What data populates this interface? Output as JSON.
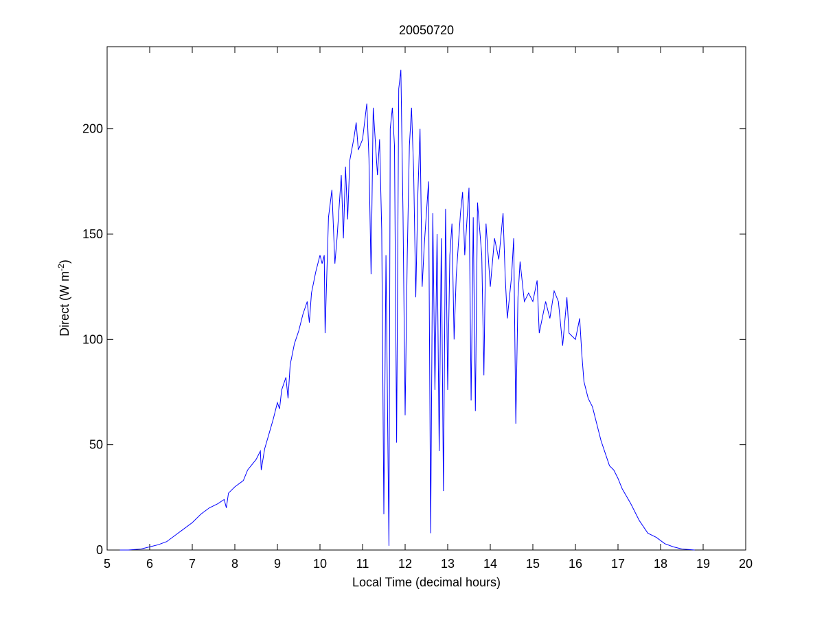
{
  "chart_data": {
    "type": "line",
    "title": "20050720",
    "x_label": "Local Time (decimal hours)",
    "y_label": {
      "text": "Direct (W m",
      "superscript": "-2",
      "suffix": ")"
    },
    "x": [
      5.3,
      5.5,
      5.8,
      6.0,
      6.2,
      6.4,
      6.6,
      6.8,
      7.0,
      7.2,
      7.4,
      7.6,
      7.75,
      7.8,
      7.85,
      8.0,
      8.2,
      8.3,
      8.5,
      8.6,
      8.62,
      8.7,
      8.8,
      8.9,
      9.0,
      9.05,
      9.1,
      9.2,
      9.25,
      9.3,
      9.4,
      9.5,
      9.6,
      9.7,
      9.75,
      9.8,
      9.9,
      10.0,
      10.05,
      10.1,
      10.12,
      10.2,
      10.28,
      10.35,
      10.4,
      10.5,
      10.55,
      10.6,
      10.65,
      10.7,
      10.8,
      10.85,
      10.9,
      11.0,
      11.1,
      11.15,
      11.2,
      11.25,
      11.35,
      11.4,
      11.45,
      11.5,
      11.55,
      11.6,
      11.62,
      11.65,
      11.7,
      11.75,
      11.8,
      11.85,
      11.9,
      11.95,
      12.0,
      12.05,
      12.1,
      12.15,
      12.2,
      12.25,
      12.3,
      12.35,
      12.4,
      12.45,
      12.55,
      12.6,
      12.65,
      12.7,
      12.75,
      12.8,
      12.85,
      12.9,
      12.95,
      13.0,
      13.05,
      13.1,
      13.15,
      13.2,
      13.3,
      13.35,
      13.4,
      13.5,
      13.55,
      13.6,
      13.65,
      13.7,
      13.8,
      13.85,
      13.9,
      14.0,
      14.1,
      14.2,
      14.3,
      14.35,
      14.4,
      14.5,
      14.55,
      14.6,
      14.65,
      14.7,
      14.8,
      14.9,
      15.0,
      15.1,
      15.15,
      15.3,
      15.4,
      15.5,
      15.6,
      15.7,
      15.8,
      15.85,
      16.0,
      16.1,
      16.15,
      16.2,
      16.3,
      16.4,
      16.5,
      16.6,
      16.7,
      16.8,
      16.9,
      17.0,
      17.1,
      17.3,
      17.5,
      17.7,
      17.9,
      18.1,
      18.3,
      18.5,
      18.8
    ],
    "series": [
      {
        "color": "#0000ff",
        "values": [
          0,
          0,
          0.5,
          1.5,
          2.5,
          4,
          7,
          10,
          13,
          17,
          20,
          22,
          24,
          20,
          27,
          30,
          33,
          38,
          43,
          47,
          38,
          48,
          55,
          62,
          70,
          67,
          76,
          82,
          72,
          88,
          98,
          104,
          112,
          118,
          108,
          122,
          132,
          140,
          136,
          140,
          103,
          158,
          171,
          136,
          148,
          178,
          148,
          182,
          157,
          185,
          196,
          203,
          190,
          195,
          212,
          186,
          131,
          210,
          178,
          195,
          152,
          17,
          140,
          40,
          2,
          200,
          210,
          192,
          51,
          219,
          228,
          160,
          64,
          140,
          192,
          210,
          180,
          120,
          170,
          200,
          125,
          145,
          175,
          8,
          160,
          76,
          150,
          47,
          148,
          28,
          162,
          76,
          140,
          155,
          100,
          130,
          160,
          170,
          140,
          172,
          71,
          158,
          66,
          165,
          140,
          83,
          155,
          125,
          148,
          138,
          160,
          130,
          110,
          130,
          148,
          60,
          120,
          137,
          118,
          122,
          118,
          128,
          103,
          118,
          110,
          123,
          118,
          97,
          120,
          103,
          100,
          110,
          93,
          80,
          72,
          68,
          60,
          52,
          46,
          40,
          38,
          34,
          29,
          22,
          14,
          8,
          6,
          3,
          1.5,
          0.5,
          0
        ]
      }
    ],
    "xlim": [
      5,
      20
    ],
    "ylim": [
      0,
      239
    ],
    "xticks": [
      5,
      6,
      7,
      8,
      9,
      10,
      11,
      12,
      13,
      14,
      15,
      16,
      17,
      18,
      19,
      20
    ],
    "yticks": [
      0,
      50,
      100,
      150,
      200
    ]
  }
}
